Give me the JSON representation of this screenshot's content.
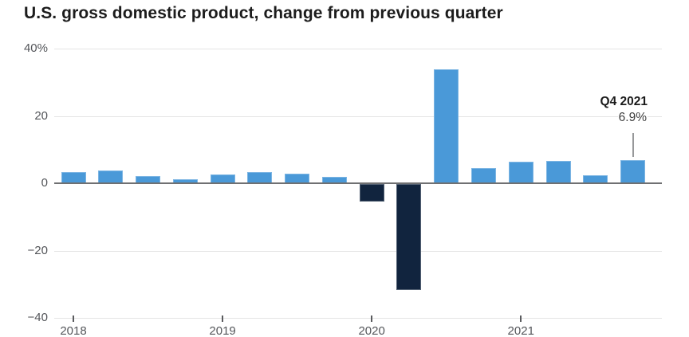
{
  "title": "U.S. gross domestic product, change from previous quarter",
  "chart_data": {
    "type": "bar",
    "title": "U.S. gross domestic product, change from previous quarter",
    "categories": [
      "Q1 2018",
      "Q2 2018",
      "Q3 2018",
      "Q4 2018",
      "Q1 2019",
      "Q2 2019",
      "Q3 2019",
      "Q4 2019",
      "Q1 2020",
      "Q2 2020",
      "Q3 2020",
      "Q4 2020",
      "Q1 2021",
      "Q2 2021",
      "Q3 2021",
      "Q4 2021"
    ],
    "values": [
      3.3,
      3.8,
      2.1,
      1.2,
      2.6,
      3.4,
      2.8,
      1.9,
      -5.1,
      -31.4,
      33.8,
      4.5,
      6.3,
      6.7,
      2.3,
      6.9
    ],
    "unit": "%",
    "xlabel": "",
    "ylabel": "",
    "ylim": [
      -40,
      40
    ],
    "grid": true,
    "legend": "none",
    "yticks": [
      {
        "value": 40,
        "label": "40%"
      },
      {
        "value": 20,
        "label": "20"
      },
      {
        "value": 0,
        "label": "0"
      },
      {
        "value": -20,
        "label": "−20"
      },
      {
        "value": -40,
        "label": "−40"
      }
    ],
    "xticks": [
      {
        "index": 0,
        "label": "2018"
      },
      {
        "index": 4,
        "label": "2019"
      },
      {
        "index": 8,
        "label": "2020"
      },
      {
        "index": 12,
        "label": "2021"
      }
    ],
    "annotation": {
      "label": "Q4 2021",
      "value_label": "6.9%",
      "target_category": "Q4 2021"
    },
    "colors": {
      "positive_bar": "#4a99d8",
      "negative_bar": "#11243e",
      "zero_line": "#6f7072",
      "gridline": "#e4e4e4",
      "tick_mark": "#5a5b5e",
      "axis_label": "#54565a",
      "annotation_line": "#97989a",
      "annotation_label": "#1b1b1b",
      "annotation_value": "#3f3f3f",
      "title": "#1c1c1c",
      "background": "#ffffff"
    }
  }
}
